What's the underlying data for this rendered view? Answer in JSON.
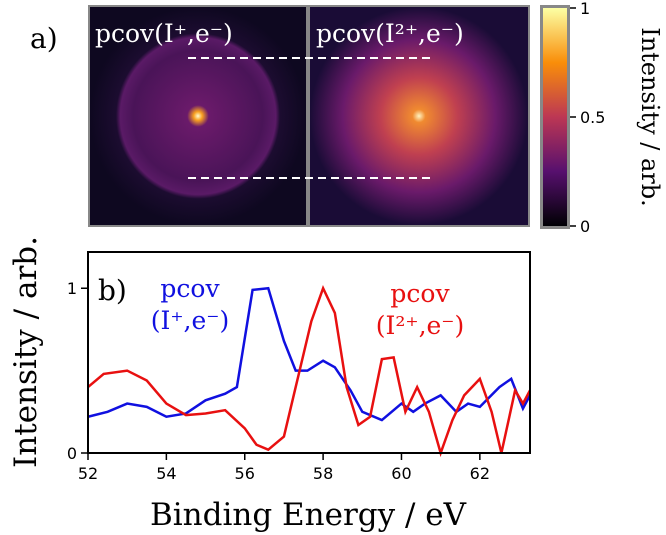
{
  "panel_a": {
    "label": "a)",
    "images": [
      {
        "title": "pcov(I⁺,e⁻)"
      },
      {
        "title": "pcov(I²⁺,e⁻)"
      }
    ],
    "colorbar": {
      "label": "Intensity / arb.",
      "lim": [
        0,
        1
      ],
      "ticks": [
        0,
        0.5,
        1
      ]
    }
  },
  "chart_data": {
    "type": "line",
    "panel_label": "b)",
    "xlabel": "Binding Energy / eV",
    "ylabel": "Intensity / arb.",
    "xlim": [
      52,
      63.28
    ],
    "ylim": [
      0,
      1.22
    ],
    "xticks": [
      52,
      54,
      56,
      58,
      60,
      62
    ],
    "yticks": [
      0,
      1
    ],
    "series": [
      {
        "label": [
          "pcov",
          "(I⁺,e⁻)"
        ],
        "color": "#1010e0",
        "x": [
          52,
          52.5,
          53,
          53.5,
          54,
          54.5,
          55,
          55.5,
          55.8,
          56.2,
          56.6,
          57,
          57.3,
          57.6,
          58,
          58.3,
          58.7,
          59,
          59.5,
          60,
          60.3,
          60.6,
          61,
          61.4,
          61.7,
          62,
          62.5,
          62.8,
          63.1,
          63.28
        ],
        "values": [
          0.22,
          0.25,
          0.3,
          0.28,
          0.22,
          0.24,
          0.32,
          0.36,
          0.4,
          0.99,
          1.0,
          0.68,
          0.5,
          0.5,
          0.56,
          0.52,
          0.38,
          0.25,
          0.2,
          0.3,
          0.25,
          0.3,
          0.35,
          0.25,
          0.3,
          0.28,
          0.4,
          0.45,
          0.27,
          0.35
        ]
      },
      {
        "label": [
          "pcov",
          "(I²⁺,e⁻)"
        ],
        "color": "#e81010",
        "x": [
          52,
          52.4,
          53,
          53.5,
          54,
          54.5,
          55,
          55.5,
          56,
          56.3,
          56.6,
          57,
          57.3,
          57.7,
          58,
          58.3,
          58.6,
          58.9,
          59.2,
          59.5,
          59.8,
          60.1,
          60.4,
          60.7,
          61,
          61.3,
          61.6,
          62,
          62.3,
          62.55,
          62.9,
          63.1,
          63.28
        ],
        "values": [
          0.4,
          0.48,
          0.5,
          0.44,
          0.3,
          0.23,
          0.24,
          0.26,
          0.15,
          0.05,
          0.02,
          0.1,
          0.4,
          0.8,
          1.0,
          0.85,
          0.4,
          0.17,
          0.22,
          0.57,
          0.58,
          0.25,
          0.4,
          0.25,
          0.0,
          0.2,
          0.35,
          0.45,
          0.25,
          0.0,
          0.38,
          0.3,
          0.38
        ]
      }
    ]
  }
}
